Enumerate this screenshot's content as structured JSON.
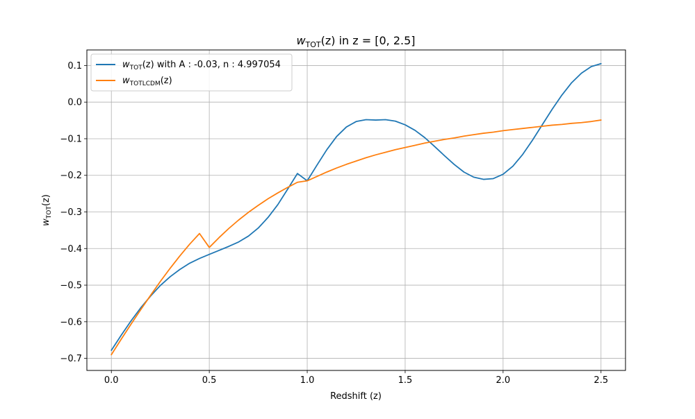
{
  "chart_data": {
    "type": "line",
    "title": {
      "base": "w",
      "sub": "TOT",
      "rest": "(z) in z = [0, 2.5]"
    },
    "xlabel": "Redshift (z)",
    "ylabel": {
      "base": "w",
      "sub": "TOT",
      "rest": "(z)"
    },
    "xlim": [
      -0.125,
      2.625
    ],
    "ylim": [
      -0.733,
      0.1425
    ],
    "xticks": [
      0.0,
      0.5,
      1.0,
      1.5,
      2.0,
      2.5
    ],
    "xtick_labels": [
      "0.0",
      "0.5",
      "1.0",
      "1.5",
      "2.0",
      "2.5"
    ],
    "yticks": [
      0.1,
      0.0,
      -0.1,
      -0.2,
      -0.3,
      -0.4,
      -0.5,
      -0.6,
      -0.7
    ],
    "ytick_labels": [
      "0.1",
      "0.0",
      "−0.1",
      "−0.2",
      "−0.3",
      "−0.4",
      "−0.5",
      "−0.6",
      "−0.7"
    ],
    "grid": true,
    "legend_position": "top-left",
    "series": [
      {
        "legend": {
          "base": "w",
          "sub": "TOT",
          "rest": "(z) with A : -0.03, n : 4.997054"
        },
        "color": "#1f77b4",
        "x": [
          0.0,
          0.05,
          0.1,
          0.15,
          0.2,
          0.25,
          0.3,
          0.35,
          0.4,
          0.45,
          0.5,
          0.55,
          0.6,
          0.65,
          0.7,
          0.75,
          0.8,
          0.85,
          0.9,
          0.95,
          1.0,
          1.05,
          1.1,
          1.15,
          1.2,
          1.25,
          1.3,
          1.35,
          1.4,
          1.45,
          1.5,
          1.55,
          1.6,
          1.65,
          1.7,
          1.75,
          1.8,
          1.85,
          1.9,
          1.95,
          2.0,
          2.05,
          2.1,
          2.15,
          2.2,
          2.25,
          2.3,
          2.35,
          2.4,
          2.45,
          2.5
        ],
        "y": [
          -0.678,
          -0.637,
          -0.598,
          -0.562,
          -0.53,
          -0.501,
          -0.477,
          -0.457,
          -0.44,
          -0.427,
          -0.416,
          -0.405,
          -0.394,
          -0.382,
          -0.366,
          -0.344,
          -0.315,
          -0.28,
          -0.238,
          -0.195,
          -0.215,
          -0.172,
          -0.13,
          -0.094,
          -0.068,
          -0.053,
          -0.048,
          -0.049,
          -0.048,
          -0.052,
          -0.062,
          -0.077,
          -0.097,
          -0.121,
          -0.146,
          -0.17,
          -0.191,
          -0.205,
          -0.211,
          -0.209,
          -0.197,
          -0.175,
          -0.143,
          -0.104,
          -0.062,
          -0.02,
          0.019,
          0.053,
          0.079,
          0.097,
          0.105
        ]
      },
      {
        "legend": {
          "base": "w",
          "sub": "TOTLCDM",
          "rest": "(z)"
        },
        "color": "#ff7f0e",
        "x": [
          0.0,
          0.05,
          0.1,
          0.15,
          0.2,
          0.25,
          0.3,
          0.35,
          0.4,
          0.45,
          0.5,
          0.55,
          0.6,
          0.65,
          0.7,
          0.75,
          0.8,
          0.85,
          0.9,
          0.95,
          1.0,
          1.05,
          1.1,
          1.15,
          1.2,
          1.25,
          1.3,
          1.35,
          1.4,
          1.45,
          1.5,
          1.55,
          1.6,
          1.65,
          1.7,
          1.75,
          1.8,
          1.85,
          1.9,
          1.95,
          2.0,
          2.05,
          2.1,
          2.15,
          2.2,
          2.25,
          2.3,
          2.35,
          2.4,
          2.45,
          2.5
        ],
        "y": [
          -0.69,
          -0.648,
          -0.607,
          -0.567,
          -0.528,
          -0.49,
          -0.454,
          -0.42,
          -0.388,
          -0.359,
          -0.397,
          -0.37,
          -0.345,
          -0.322,
          -0.301,
          -0.282,
          -0.264,
          -0.248,
          -0.233,
          -0.219,
          -0.215,
          -0.203,
          -0.191,
          -0.18,
          -0.17,
          -0.161,
          -0.152,
          -0.144,
          -0.137,
          -0.13,
          -0.124,
          -0.118,
          -0.112,
          -0.107,
          -0.102,
          -0.098,
          -0.093,
          -0.089,
          -0.085,
          -0.082,
          -0.078,
          -0.075,
          -0.072,
          -0.069,
          -0.066,
          -0.063,
          -0.061,
          -0.058,
          -0.056,
          -0.053,
          -0.049
        ]
      }
    ]
  }
}
